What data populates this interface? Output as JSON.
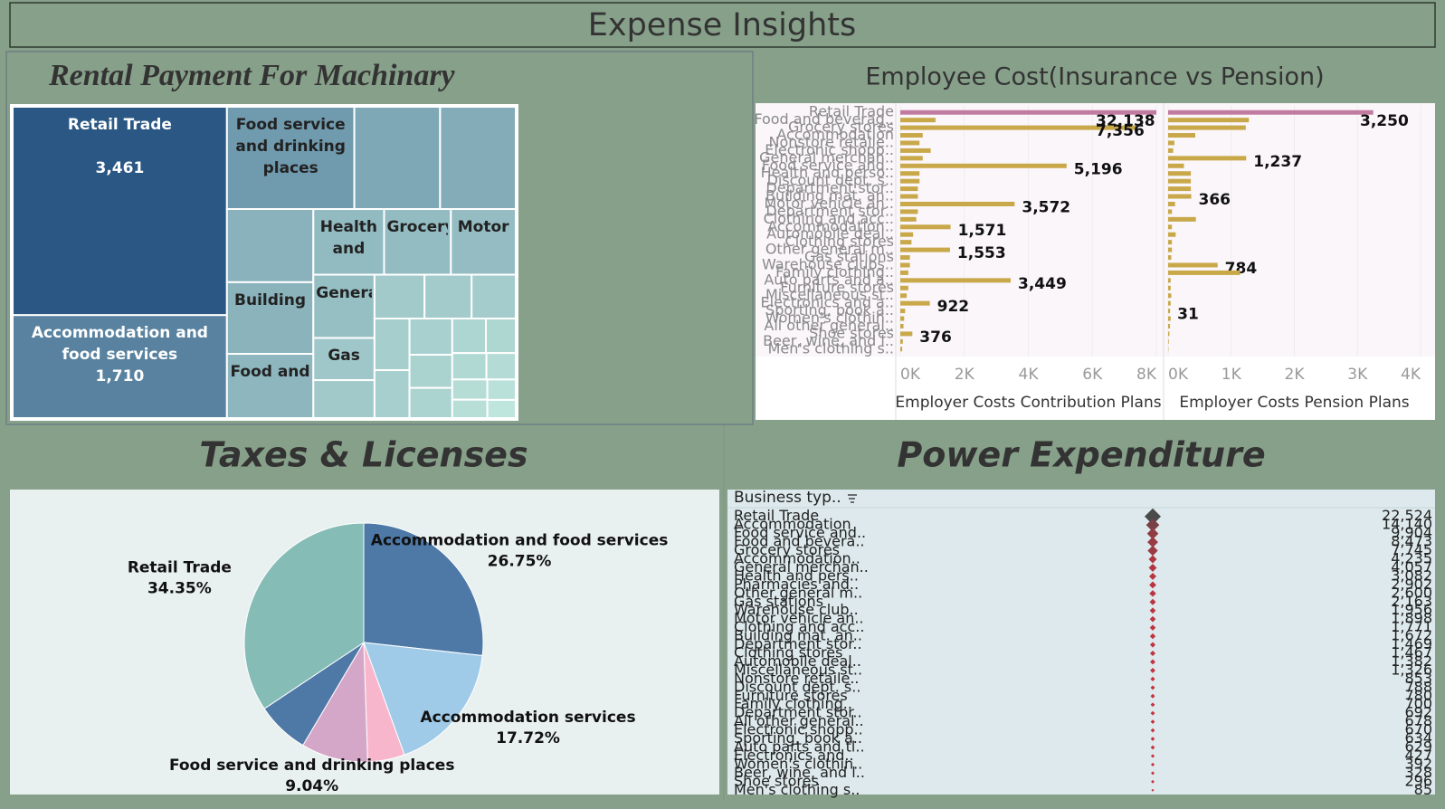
{
  "header": {
    "title": "Expense Insights"
  },
  "chart_data": [
    {
      "type": "treemap",
      "title": "Rental Payment For Machinary",
      "color_range": [
        "#bfe6dc",
        "#2b5784"
      ],
      "categories": [
        "Retail Trade",
        "Accommodation and food services",
        "Food service and drinking places",
        null,
        null,
        null,
        "Building",
        "Food and",
        "Health and",
        "Grocery",
        "Motor",
        "General",
        "Gas",
        null,
        null,
        null,
        null,
        null,
        null,
        null,
        null,
        null,
        null,
        null,
        null,
        null,
        null,
        null,
        null,
        null
      ],
      "values": [
        3461,
        1710,
        1010,
        680,
        600,
        490,
        480,
        430,
        360,
        340,
        330,
        300,
        200,
        180,
        170,
        160,
        150,
        140,
        130,
        120,
        110,
        100,
        90,
        80,
        70,
        60,
        55,
        50,
        45,
        40
      ],
      "value_labels": [
        "3,461",
        "1,710",
        null,
        null,
        null,
        null,
        null,
        null,
        null,
        null,
        null,
        null,
        null,
        null,
        null,
        null,
        null,
        null,
        null,
        null,
        null,
        null,
        null,
        null,
        null,
        null,
        null,
        null,
        null,
        null
      ]
    },
    {
      "type": "bar",
      "title": "Employee Cost(Insurance vs Pension)",
      "categories": [
        "Retail Trade",
        "Food and beverag..",
        "Grocery stores",
        "Accommodation",
        "Nonstore retaile..",
        "Electronic shopp..",
        "General merchan..",
        "Food service and..",
        "Health and perso..",
        "Discount dept. s..",
        "Department stor..",
        "Building mat. an..",
        "Motor vehicle an..",
        "Department stor..",
        "Clothing and acc..",
        "Accommodation..",
        "Automobile deal..",
        "Clothing stores",
        "Other general m..",
        "Gas stations",
        "Warehouse clubs..",
        "Family clothing..",
        "Auto parts and a..",
        "Furniture stores",
        "Miscellaneous st..",
        "Electronics and a..",
        "Sporting, book a..",
        "Women's clothin..",
        "All other general..",
        "Shoe stores",
        "Beer, wine, and l..",
        "Men's clothing s.."
      ],
      "colors": [
        "#c27ba0",
        "#c9a84a",
        "#c9a84a",
        "#c9a84a",
        "#c9a84a",
        "#c9a84a",
        "#c9a84a",
        "#c9a84a",
        "#c9a84a",
        "#c9a84a",
        "#c9a84a",
        "#c9a84a",
        "#c9a84a",
        "#c9a84a",
        "#c9a84a",
        "#c9a84a",
        "#c9a84a",
        "#c9a84a",
        "#c9a84a",
        "#c9a84a",
        "#c9a84a",
        "#c9a84a",
        "#c9a84a",
        "#c9a84a",
        "#c9a84a",
        "#c9a84a",
        "#c9a84a",
        "#c9a84a",
        "#c9a84a",
        "#c9a84a",
        "#c9a84a",
        "#c9a84a"
      ],
      "series": [
        {
          "name": "Employer Costs Contribution Plans",
          "color": "#c9a84a",
          "values": [
            32138,
            1100,
            7356,
            700,
            600,
            950,
            700,
            5196,
            600,
            600,
            550,
            550,
            3572,
            550,
            500,
            1571,
            400,
            350,
            1553,
            300,
            300,
            250,
            3449,
            250,
            200,
            922,
            150,
            120,
            100,
            376,
            80,
            60
          ],
          "value_labels": [
            "32,138",
            null,
            "7,356",
            null,
            null,
            null,
            null,
            "5,196",
            null,
            null,
            null,
            null,
            "3,572",
            null,
            null,
            "1,571",
            null,
            null,
            "1,553",
            null,
            null,
            null,
            "3,449",
            null,
            null,
            "922",
            null,
            null,
            null,
            "376",
            null,
            null
          ],
          "xlim": [
            0,
            8000
          ],
          "xticks": [
            {
              "value": 0,
              "label": "0K"
            },
            {
              "value": 2000,
              "label": "2K"
            },
            {
              "value": 4000,
              "label": "4K"
            },
            {
              "value": 6000,
              "label": "6K"
            },
            {
              "value": 8000,
              "label": "8K"
            }
          ]
        },
        {
          "name": "Employer Costs Pension Plans",
          "color": "#d6bd6a",
          "values": [
            3250,
            1280,
            1230,
            430,
            100,
            80,
            1237,
            250,
            360,
            360,
            360,
            366,
            110,
            60,
            440,
            60,
            120,
            60,
            60,
            50,
            784,
            1140,
            40,
            40,
            50,
            40,
            31,
            40,
            30,
            20,
            10,
            5
          ],
          "value_labels": [
            "3,250",
            null,
            null,
            null,
            null,
            null,
            "1,237",
            null,
            null,
            null,
            null,
            "366",
            null,
            null,
            null,
            null,
            null,
            null,
            null,
            null,
            "784",
            null,
            null,
            null,
            null,
            null,
            "31",
            null,
            null,
            null,
            null,
            null
          ],
          "xlim": [
            0,
            4000
          ],
          "xticks": [
            {
              "value": 0,
              "label": "0K"
            },
            {
              "value": 1000,
              "label": "1K"
            },
            {
              "value": 2000,
              "label": "2K"
            },
            {
              "value": 3000,
              "label": "3K"
            },
            {
              "value": 4000,
              "label": "4K"
            }
          ]
        }
      ]
    },
    {
      "type": "pie",
      "title": "Taxes & Licenses",
      "categories": [
        "Accommodation and food services",
        "Accommodation services",
        null,
        "Food service and drinking places",
        null,
        "Retail Trade"
      ],
      "values": [
        26.75,
        17.72,
        5.0,
        9.04,
        7.14,
        34.35
      ],
      "value_labels": [
        "26.75%",
        "17.72%",
        null,
        "9.04%",
        null,
        "34.35%"
      ],
      "colors": [
        "#4e79a7",
        "#a0cbe8",
        "#f7b6cc",
        "#d4a6c8",
        "#4e79a7",
        "#86bcb6"
      ]
    },
    {
      "type": "dot",
      "title": "Power Expenditure",
      "category_header": "Business typ..",
      "color_range": [
        "#c8323f",
        "#4a4a4a"
      ],
      "categories": [
        "Retail Trade",
        "Accommodation",
        "Food service and..",
        "Food and bevera..",
        "Grocery stores",
        "Accommodation..",
        "General merchan..",
        "Health and pers..",
        "Pharmacies and..",
        "Other general m..",
        "Gas stations",
        "Warehouse club..",
        "Motor vehicle an..",
        "Clothing and acc..",
        "Building mat. an..",
        "Department stor..",
        "Clothing stores",
        "Automobile deal..",
        "Miscellaneous st..",
        "Nonstore retaile..",
        "Discount dept. s..",
        "Furniture stores",
        "Family clothing..",
        "Department stor..",
        "All other general..",
        "Electronic shopp..",
        "Sporting, book a..",
        "Auto parts and tl..",
        "Electronics and..",
        "Women's clothin..",
        "Beer, wine, and l..",
        "Shoe stores",
        "Men's clothing s.."
      ],
      "values": [
        22524,
        14140,
        9904,
        8473,
        7745,
        4235,
        4057,
        3082,
        2902,
        2600,
        2163,
        1956,
        1898,
        1771,
        1672,
        1469,
        1467,
        1382,
        1326,
        853,
        788,
        780,
        700,
        692,
        678,
        670,
        634,
        629,
        427,
        392,
        328,
        296,
        85
      ],
      "value_labels": [
        "22,524",
        "14,140",
        "9,904",
        "8,473",
        "7,745",
        "4,235",
        "4,057",
        "3,082",
        "2,902",
        "2,600",
        "2,163",
        "1,956",
        "1,898",
        "1,771",
        "1,672",
        "1,469",
        "1,467",
        "1,382",
        "1,326",
        "853",
        "788",
        "780",
        "700",
        "692",
        "678",
        "670",
        "634",
        "629",
        "427",
        "392",
        "328",
        "296",
        "85"
      ]
    }
  ]
}
